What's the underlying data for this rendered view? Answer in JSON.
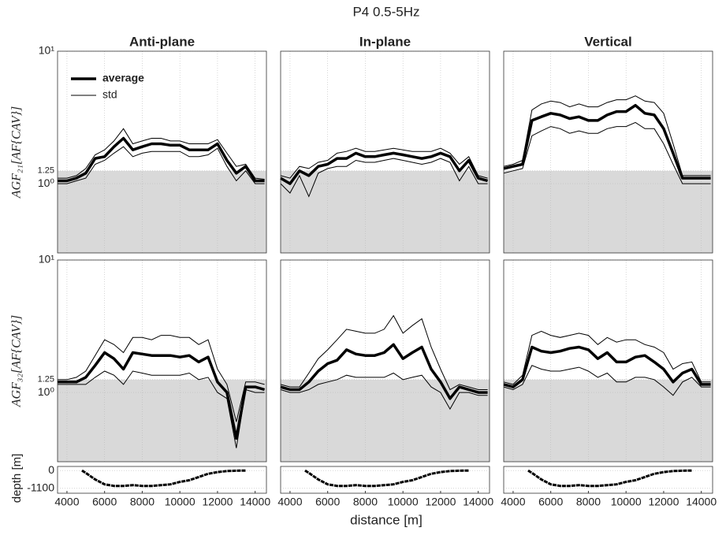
{
  "chart_data": {
    "type": "line",
    "title": "P4  0.5-5Hz",
    "xlabel": "distance [m]",
    "columns": [
      "Anti-plane",
      "In-plane",
      "Vertical"
    ],
    "xlim": [
      3500,
      14600
    ],
    "xticks": [
      4000,
      6000,
      8000,
      10000,
      12000,
      14000
    ],
    "yscale": "log",
    "ylim": [
      0.3,
      10
    ],
    "yticks": [
      {
        "value": 1,
        "label": "10⁰"
      },
      1.25,
      {
        "value": 10,
        "label": "10¹"
      }
    ],
    "shade_below": 1.25,
    "shade_color": "#d9d9d9",
    "grid": true,
    "x": [
      3500,
      4000,
      4500,
      5000,
      5500,
      6000,
      6500,
      7000,
      7500,
      8000,
      8500,
      9000,
      9500,
      10000,
      10500,
      11000,
      11500,
      12000,
      12500,
      13000,
      13500,
      14000,
      14500
    ],
    "rows": [
      {
        "ylabel": "AGF₂₁[AF{CAV}]",
        "panels": [
          {
            "series": [
              {
                "name": "average",
                "color": "#000000",
                "values": [
                  1.05,
                  1.05,
                  1.1,
                  1.2,
                  1.55,
                  1.6,
                  1.9,
                  2.2,
                  1.8,
                  1.9,
                  2.0,
                  2.0,
                  1.95,
                  1.95,
                  1.8,
                  1.8,
                  1.8,
                  2.0,
                  1.5,
                  1.2,
                  1.35,
                  1.05,
                  1.05
                ]
              },
              {
                "name": "std",
                "color": "#000000",
                "upper": [
                  1.1,
                  1.1,
                  1.15,
                  1.3,
                  1.65,
                  1.8,
                  2.1,
                  2.6,
                  2.0,
                  2.1,
                  2.2,
                  2.2,
                  2.1,
                  2.1,
                  2.0,
                  2.0,
                  2.0,
                  2.15,
                  1.7,
                  1.35,
                  1.4,
                  1.1,
                  1.08
                ],
                "lower": [
                  1.0,
                  1.0,
                  1.05,
                  1.1,
                  1.4,
                  1.5,
                  1.7,
                  1.9,
                  1.6,
                  1.7,
                  1.75,
                  1.75,
                  1.75,
                  1.75,
                  1.6,
                  1.6,
                  1.65,
                  1.85,
                  1.35,
                  1.05,
                  1.25,
                  1.0,
                  1.0
                ]
              }
            ]
          },
          {
            "series": [
              {
                "name": "average",
                "color": "#000000",
                "values": [
                  1.1,
                  1.0,
                  1.25,
                  1.15,
                  1.35,
                  1.4,
                  1.55,
                  1.55,
                  1.7,
                  1.6,
                  1.6,
                  1.65,
                  1.7,
                  1.65,
                  1.6,
                  1.55,
                  1.6,
                  1.7,
                  1.6,
                  1.25,
                  1.5,
                  1.1,
                  1.05
                ]
              },
              {
                "name": "std",
                "color": "#000000",
                "upper": [
                  1.15,
                  1.1,
                  1.35,
                  1.3,
                  1.45,
                  1.5,
                  1.7,
                  1.75,
                  1.85,
                  1.75,
                  1.75,
                  1.8,
                  1.85,
                  1.8,
                  1.75,
                  1.75,
                  1.75,
                  1.85,
                  1.7,
                  1.4,
                  1.6,
                  1.15,
                  1.1
                ],
                "lower": [
                  1.0,
                  0.85,
                  1.15,
                  0.8,
                  1.2,
                  1.3,
                  1.35,
                  1.35,
                  1.5,
                  1.45,
                  1.45,
                  1.5,
                  1.55,
                  1.5,
                  1.45,
                  1.4,
                  1.45,
                  1.55,
                  1.45,
                  1.05,
                  1.35,
                  1.0,
                  1.0
                ]
              }
            ]
          },
          {
            "series": [
              {
                "name": "average",
                "color": "#000000",
                "values": [
                  1.3,
                  1.35,
                  1.4,
                  3.0,
                  3.2,
                  3.4,
                  3.3,
                  3.1,
                  3.2,
                  3.0,
                  3.0,
                  3.3,
                  3.5,
                  3.5,
                  3.9,
                  3.4,
                  3.3,
                  2.6,
                  1.7,
                  1.1,
                  1.1,
                  1.1,
                  1.1
                ]
              },
              {
                "name": "std",
                "color": "#000000",
                "upper": [
                  1.35,
                  1.4,
                  1.5,
                  3.6,
                  4.0,
                  4.2,
                  4.1,
                  3.8,
                  4.0,
                  3.8,
                  3.8,
                  4.1,
                  4.3,
                  4.3,
                  4.6,
                  4.2,
                  4.1,
                  3.4,
                  2.0,
                  1.15,
                  1.15,
                  1.15,
                  1.15
                ],
                "lower": [
                  1.2,
                  1.25,
                  1.3,
                  2.3,
                  2.5,
                  2.7,
                  2.6,
                  2.4,
                  2.5,
                  2.4,
                  2.4,
                  2.6,
                  2.7,
                  2.7,
                  2.9,
                  2.6,
                  2.6,
                  2.0,
                  1.4,
                  1.0,
                  1.0,
                  1.0,
                  1.0
                ]
              }
            ]
          }
        ]
      },
      {
        "ylabel": "AGF₃₂[AF{CAV}]",
        "panels": [
          {
            "series": [
              {
                "name": "average",
                "color": "#000000",
                "values": [
                  1.2,
                  1.2,
                  1.2,
                  1.3,
                  1.6,
                  2.0,
                  1.8,
                  1.5,
                  2.0,
                  1.95,
                  1.9,
                  1.9,
                  1.9,
                  1.85,
                  1.9,
                  1.7,
                  1.85,
                  1.2,
                  1.0,
                  0.45,
                  1.1,
                  1.1,
                  1.05
                ]
              },
              {
                "name": "std",
                "color": "#000000",
                "upper": [
                  1.25,
                  1.25,
                  1.3,
                  1.45,
                  1.9,
                  2.5,
                  2.3,
                  2.0,
                  2.6,
                  2.6,
                  2.5,
                  2.7,
                  2.7,
                  2.6,
                  2.6,
                  2.3,
                  2.5,
                  1.5,
                  1.15,
                  0.6,
                  1.2,
                  1.2,
                  1.15
                ],
                "lower": [
                  1.15,
                  1.15,
                  1.15,
                  1.15,
                  1.3,
                  1.45,
                  1.35,
                  1.15,
                  1.45,
                  1.4,
                  1.35,
                  1.35,
                  1.35,
                  1.35,
                  1.4,
                  1.25,
                  1.3,
                  1.0,
                  0.9,
                  0.38,
                  1.05,
                  1.0,
                  1.0
                ]
              }
            ]
          },
          {
            "series": [
              {
                "name": "average",
                "color": "#000000",
                "values": [
                  1.1,
                  1.05,
                  1.05,
                  1.2,
                  1.45,
                  1.65,
                  1.75,
                  2.1,
                  1.95,
                  1.9,
                  1.9,
                  2.0,
                  2.3,
                  1.8,
                  2.0,
                  2.2,
                  1.5,
                  1.2,
                  0.9,
                  1.1,
                  1.05,
                  1.0,
                  1.0
                ]
              },
              {
                "name": "std",
                "color": "#000000",
                "upper": [
                  1.15,
                  1.1,
                  1.1,
                  1.4,
                  1.8,
                  2.1,
                  2.5,
                  3.0,
                  2.9,
                  2.8,
                  2.8,
                  3.0,
                  3.8,
                  2.8,
                  3.2,
                  3.6,
                  2.2,
                  1.5,
                  1.05,
                  1.15,
                  1.1,
                  1.05,
                  1.05
                ],
                "lower": [
                  1.05,
                  1.0,
                  1.0,
                  1.05,
                  1.15,
                  1.2,
                  1.25,
                  1.35,
                  1.3,
                  1.3,
                  1.3,
                  1.3,
                  1.4,
                  1.25,
                  1.3,
                  1.35,
                  1.1,
                  1.0,
                  0.75,
                  1.0,
                  1.0,
                  0.95,
                  0.95
                ]
              }
            ]
          },
          {
            "series": [
              {
                "name": "average",
                "color": "#000000",
                "values": [
                  1.15,
                  1.1,
                  1.25,
                  2.2,
                  2.05,
                  2.0,
                  2.05,
                  2.15,
                  2.2,
                  2.1,
                  1.8,
                  2.0,
                  1.7,
                  1.7,
                  1.85,
                  1.9,
                  1.7,
                  1.5,
                  1.2,
                  1.4,
                  1.5,
                  1.15,
                  1.15
                ]
              },
              {
                "name": "std",
                "color": "#000000",
                "upper": [
                  1.2,
                  1.15,
                  1.35,
                  2.7,
                  2.9,
                  2.7,
                  2.6,
                  2.7,
                  2.8,
                  2.7,
                  2.3,
                  2.6,
                  2.4,
                  2.5,
                  2.5,
                  2.3,
                  2.2,
                  2.0,
                  1.5,
                  1.65,
                  1.7,
                  1.2,
                  1.2
                ],
                "lower": [
                  1.1,
                  1.05,
                  1.15,
                  1.6,
                  1.5,
                  1.45,
                  1.45,
                  1.5,
                  1.55,
                  1.45,
                  1.3,
                  1.4,
                  1.2,
                  1.2,
                  1.3,
                  1.3,
                  1.25,
                  1.1,
                  0.95,
                  1.2,
                  1.3,
                  1.1,
                  1.1
                ]
              }
            ]
          }
        ]
      }
    ],
    "depth": {
      "ylabel": "depth [m]",
      "ylim": [
        -1400,
        250
      ],
      "yticks": [
        0,
        -1100
      ],
      "color": "#000000",
      "x": [
        4800,
        5000,
        5500,
        6000,
        6500,
        7000,
        7500,
        8000,
        8500,
        9000,
        9500,
        10000,
        10500,
        11000,
        11500,
        12000,
        12500,
        13000,
        13500
      ],
      "values": [
        0,
        -150,
        -550,
        -850,
        -950,
        -950,
        -900,
        -950,
        -950,
        -900,
        -850,
        -700,
        -600,
        -400,
        -200,
        -100,
        -30,
        -10,
        0
      ]
    }
  }
}
